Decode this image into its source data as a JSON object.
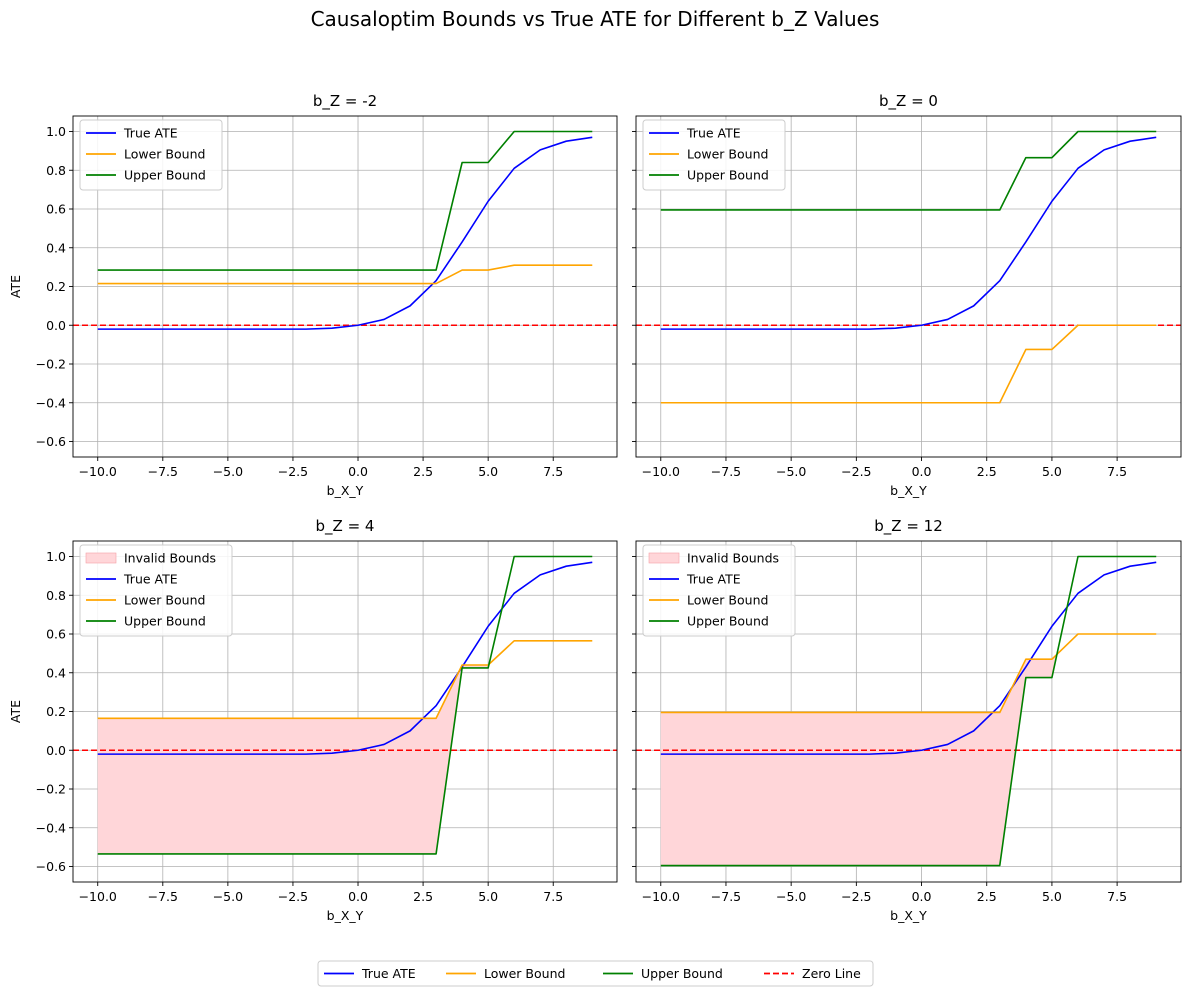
{
  "figure": {
    "suptitle": "Causaloptim Bounds vs True ATE for Different b_Z Values"
  },
  "colors": {
    "true_ate": "#0000ff",
    "lower": "#ffa500",
    "upper": "#008000",
    "zero": "#ff0000",
    "invalid_fill": "#ffd6d9",
    "grid": "#b0b0b0"
  },
  "chart_data": [
    {
      "type": "line",
      "title": "b_Z = -2",
      "xlabel": "b_X_Y",
      "ylabel": "ATE",
      "xlim": [
        -10.95,
        9.95
      ],
      "ylim": [
        -0.68,
        1.08
      ],
      "xticks": [
        -10.0,
        -7.5,
        -5.0,
        -2.5,
        0.0,
        2.5,
        5.0,
        7.5
      ],
      "yticks": [
        -0.6,
        -0.4,
        -0.2,
        0.0,
        0.2,
        0.4,
        0.6,
        0.8,
        1.0
      ],
      "grid": true,
      "legend": "upper-left",
      "x": [
        -10,
        -9,
        -8,
        -7,
        -6,
        -5,
        -4,
        -3,
        -2,
        -1,
        0,
        1,
        2,
        3,
        4,
        5,
        6,
        7,
        8,
        9
      ],
      "series": [
        {
          "name": "True ATE",
          "values": [
            -0.02,
            -0.02,
            -0.02,
            -0.02,
            -0.02,
            -0.02,
            -0.02,
            -0.02,
            -0.02,
            -0.015,
            0.0,
            0.03,
            0.1,
            0.23,
            0.43,
            0.64,
            0.81,
            0.905,
            0.95,
            0.97
          ]
        },
        {
          "name": "Lower Bound",
          "values": [
            0.215,
            0.215,
            0.215,
            0.215,
            0.215,
            0.215,
            0.215,
            0.215,
            0.215,
            0.215,
            0.215,
            0.215,
            0.215,
            0.215,
            0.285,
            0.285,
            0.31,
            0.31,
            0.31,
            0.31
          ]
        },
        {
          "name": "Upper Bound",
          "values": [
            0.285,
            0.285,
            0.285,
            0.285,
            0.285,
            0.285,
            0.285,
            0.285,
            0.285,
            0.285,
            0.285,
            0.285,
            0.285,
            0.285,
            0.84,
            0.84,
            1.0,
            1.0,
            1.0,
            1.0
          ]
        }
      ],
      "invalid_bounds": false
    },
    {
      "type": "line",
      "title": "b_Z = 0",
      "xlabel": "b_X_Y",
      "ylabel": "",
      "xlim": [
        -10.95,
        9.95
      ],
      "ylim": [
        -0.68,
        1.08
      ],
      "xticks": [
        -10.0,
        -7.5,
        -5.0,
        -2.5,
        0.0,
        2.5,
        5.0,
        7.5
      ],
      "yticks": [
        -0.6,
        -0.4,
        -0.2,
        0.0,
        0.2,
        0.4,
        0.6,
        0.8,
        1.0
      ],
      "grid": true,
      "legend": "upper-left",
      "x": [
        -10,
        -9,
        -8,
        -7,
        -6,
        -5,
        -4,
        -3,
        -2,
        -1,
        0,
        1,
        2,
        3,
        4,
        5,
        6,
        7,
        8,
        9
      ],
      "series": [
        {
          "name": "True ATE",
          "values": [
            -0.02,
            -0.02,
            -0.02,
            -0.02,
            -0.02,
            -0.02,
            -0.02,
            -0.02,
            -0.02,
            -0.015,
            0.0,
            0.03,
            0.1,
            0.23,
            0.43,
            0.64,
            0.81,
            0.905,
            0.95,
            0.97
          ]
        },
        {
          "name": "Lower Bound",
          "values": [
            -0.4,
            -0.4,
            -0.4,
            -0.4,
            -0.4,
            -0.4,
            -0.4,
            -0.4,
            -0.4,
            -0.4,
            -0.4,
            -0.4,
            -0.4,
            -0.4,
            -0.125,
            -0.125,
            0.0,
            0.0,
            0.0,
            0.0
          ]
        },
        {
          "name": "Upper Bound",
          "values": [
            0.595,
            0.595,
            0.595,
            0.595,
            0.595,
            0.595,
            0.595,
            0.595,
            0.595,
            0.595,
            0.595,
            0.595,
            0.595,
            0.595,
            0.865,
            0.865,
            1.0,
            1.0,
            1.0,
            1.0
          ]
        }
      ],
      "invalid_bounds": false
    },
    {
      "type": "line",
      "title": "b_Z = 4",
      "xlabel": "b_X_Y",
      "ylabel": "ATE",
      "xlim": [
        -10.95,
        9.95
      ],
      "ylim": [
        -0.68,
        1.08
      ],
      "xticks": [
        -10.0,
        -7.5,
        -5.0,
        -2.5,
        0.0,
        2.5,
        5.0,
        7.5
      ],
      "yticks": [
        -0.6,
        -0.4,
        -0.2,
        0.0,
        0.2,
        0.4,
        0.6,
        0.8,
        1.0
      ],
      "grid": true,
      "legend": "upper-left",
      "x": [
        -10,
        -9,
        -8,
        -7,
        -6,
        -5,
        -4,
        -3,
        -2,
        -1,
        0,
        1,
        2,
        3,
        4,
        5,
        6,
        7,
        8,
        9
      ],
      "series": [
        {
          "name": "True ATE",
          "values": [
            -0.02,
            -0.02,
            -0.02,
            -0.02,
            -0.02,
            -0.02,
            -0.02,
            -0.02,
            -0.02,
            -0.015,
            0.0,
            0.03,
            0.1,
            0.23,
            0.43,
            0.64,
            0.81,
            0.905,
            0.95,
            0.97
          ]
        },
        {
          "name": "Lower Bound",
          "values": [
            0.165,
            0.165,
            0.165,
            0.165,
            0.165,
            0.165,
            0.165,
            0.165,
            0.165,
            0.165,
            0.165,
            0.165,
            0.165,
            0.165,
            0.44,
            0.44,
            0.565,
            0.565,
            0.565,
            0.565
          ]
        },
        {
          "name": "Upper Bound",
          "values": [
            -0.535,
            -0.535,
            -0.535,
            -0.535,
            -0.535,
            -0.535,
            -0.535,
            -0.535,
            -0.535,
            -0.535,
            -0.535,
            -0.535,
            -0.535,
            -0.535,
            0.425,
            0.425,
            1.0,
            1.0,
            1.0,
            1.0
          ]
        }
      ],
      "invalid_bounds": true,
      "invalid_label": "Invalid Bounds"
    },
    {
      "type": "line",
      "title": "b_Z = 12",
      "xlabel": "b_X_Y",
      "ylabel": "",
      "xlim": [
        -10.95,
        9.95
      ],
      "ylim": [
        -0.68,
        1.08
      ],
      "xticks": [
        -10.0,
        -7.5,
        -5.0,
        -2.5,
        0.0,
        2.5,
        5.0,
        7.5
      ],
      "yticks": [
        -0.6,
        -0.4,
        -0.2,
        0.0,
        0.2,
        0.4,
        0.6,
        0.8,
        1.0
      ],
      "grid": true,
      "legend": "upper-left",
      "x": [
        -10,
        -9,
        -8,
        -7,
        -6,
        -5,
        -4,
        -3,
        -2,
        -1,
        0,
        1,
        2,
        3,
        4,
        5,
        6,
        7,
        8,
        9
      ],
      "series": [
        {
          "name": "True ATE",
          "values": [
            -0.02,
            -0.02,
            -0.02,
            -0.02,
            -0.02,
            -0.02,
            -0.02,
            -0.02,
            -0.02,
            -0.015,
            0.0,
            0.03,
            0.1,
            0.23,
            0.43,
            0.64,
            0.81,
            0.905,
            0.95,
            0.97
          ]
        },
        {
          "name": "Lower Bound",
          "values": [
            0.195,
            0.195,
            0.195,
            0.195,
            0.195,
            0.195,
            0.195,
            0.195,
            0.195,
            0.195,
            0.195,
            0.195,
            0.195,
            0.195,
            0.47,
            0.47,
            0.6,
            0.6,
            0.6,
            0.6
          ]
        },
        {
          "name": "Upper Bound",
          "values": [
            -0.595,
            -0.595,
            -0.595,
            -0.595,
            -0.595,
            -0.595,
            -0.595,
            -0.595,
            -0.595,
            -0.595,
            -0.595,
            -0.595,
            -0.595,
            -0.595,
            0.375,
            0.375,
            1.0,
            1.0,
            1.0,
            1.0
          ]
        }
      ],
      "invalid_bounds": true,
      "invalid_label": "Invalid Bounds"
    }
  ],
  "zero_line": {
    "y": 0,
    "name": "Zero Line"
  },
  "figure_legend": {
    "placement": "bottom-center",
    "entries": [
      "True ATE",
      "Lower Bound",
      "Upper Bound",
      "Zero Line"
    ]
  }
}
